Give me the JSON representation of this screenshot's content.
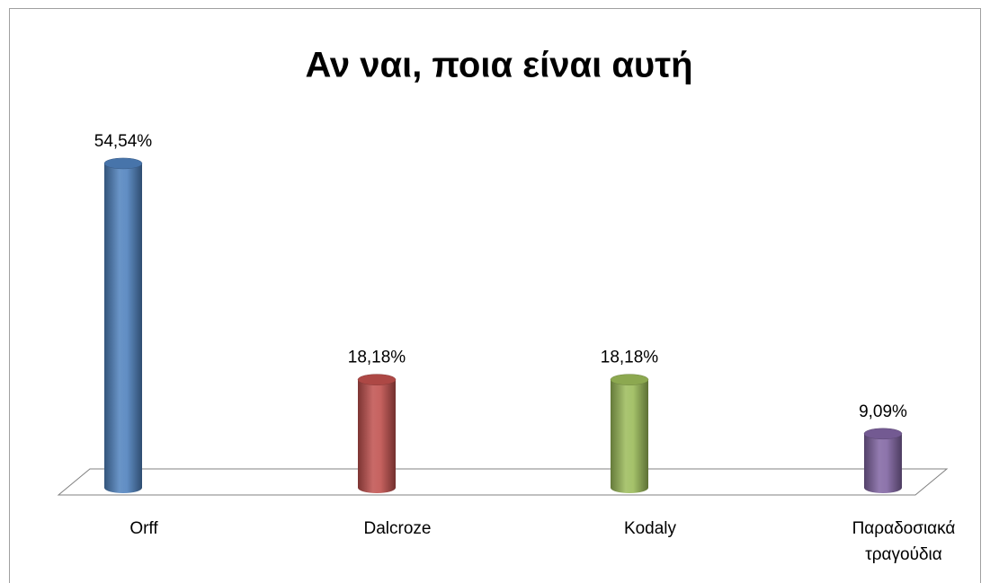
{
  "chart_data": {
    "type": "bar",
    "title": "Αν ναι, ποια είναι αυτή",
    "categories": [
      "Orff",
      "Dalcroze",
      "Kodaly",
      "Παραδοσιακά τραγούδια"
    ],
    "values": [
      54.54,
      18.18,
      18.18,
      9.09
    ],
    "value_labels": [
      "54,54%",
      "18,18%",
      "18,18%",
      "9,09%"
    ],
    "colors": [
      "#4f81bd",
      "#c0504d",
      "#9bbb59",
      "#8064a2"
    ]
  }
}
